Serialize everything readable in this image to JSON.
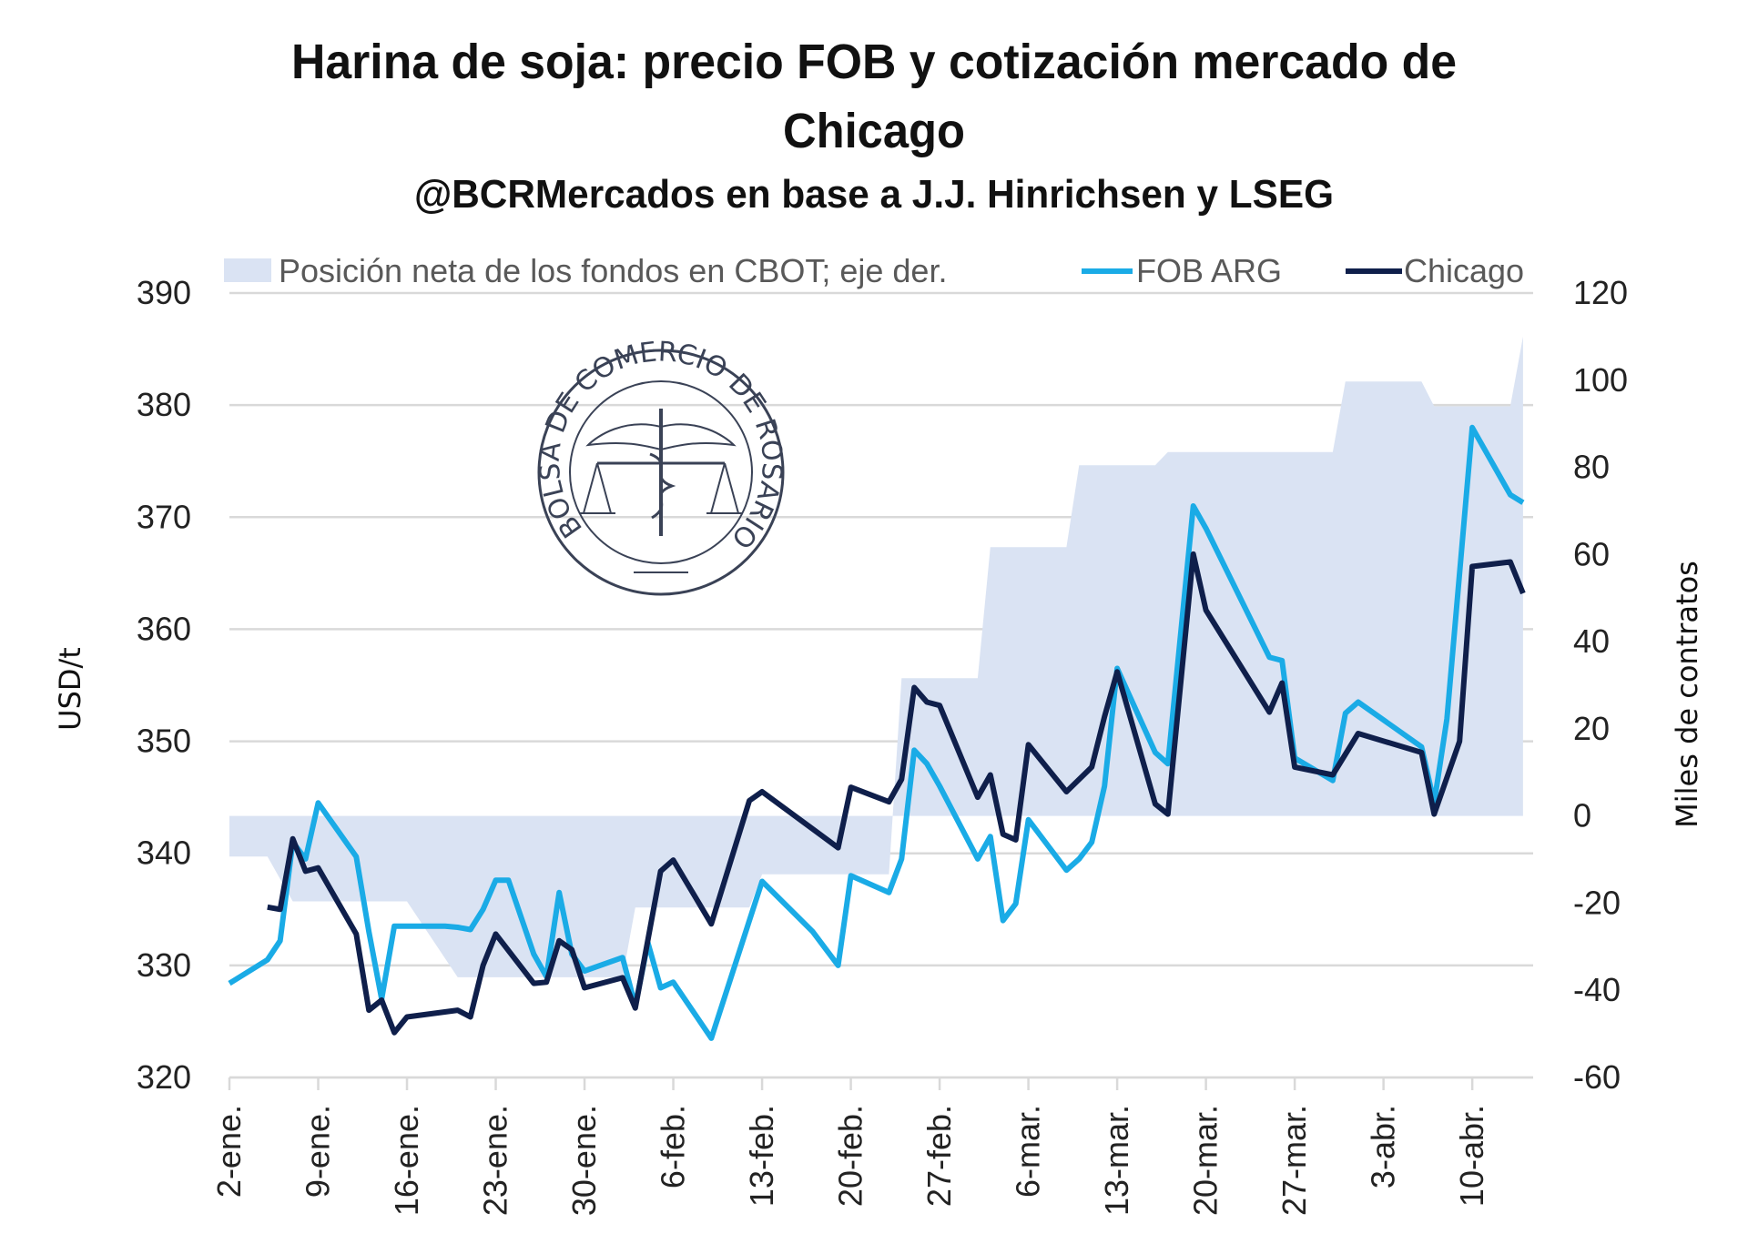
{
  "chart_data": {
    "type": "line",
    "title": "Harina de soja: precio FOB y cotización mercado de Chicago",
    "title_lines": [
      "Harina de soja: precio FOB y cotización mercado de",
      "Chicago"
    ],
    "subtitle": "@BCRMercados en base a J.J. Hinrichsen y LSEG",
    "ylabel": "USD/t",
    "y2label": "Miles de contratos",
    "ylim": [
      320,
      390
    ],
    "y2lim": [
      -60,
      120
    ],
    "yticks": [
      "390",
      "380",
      "370",
      "360",
      "350",
      "340",
      "330",
      "320"
    ],
    "y2ticks": [
      "120",
      "100",
      "80",
      "60",
      "40",
      "20",
      "0",
      "-20",
      "-40",
      "-60"
    ],
    "xticks": [
      "2-ene.",
      "9-ene.",
      "16-ene.",
      "23-ene.",
      "30-ene.",
      "6-feb.",
      "13-feb.",
      "20-feb.",
      "27-feb.",
      "6-mar.",
      "13-mar.",
      "20-mar.",
      "27-mar.",
      "3-abr.",
      "10-abr."
    ],
    "x_range": [
      "01-02",
      "04-14"
    ],
    "x_format": "MM-DD",
    "grid": true,
    "legend_placement": "top",
    "series": [
      {
        "name": "Posición neta de los fondos en CBOT; eje der.",
        "type": "area",
        "axis": "right",
        "color": "#DAE3F3",
        "points": [
          [
            "01-02",
            -9.3
          ],
          [
            "01-05",
            -9.3
          ],
          [
            "01-07",
            -19.6
          ],
          [
            "01-16",
            -19.6
          ],
          [
            "01-20",
            -37
          ],
          [
            "02-02",
            -37
          ],
          [
            "02-03",
            -21
          ],
          [
            "02-12",
            -21
          ],
          [
            "02-13",
            -13.4
          ],
          [
            "02-23",
            -13.4
          ],
          [
            "02-24",
            31.6
          ],
          [
            "03-02",
            31.6
          ],
          [
            "03-03",
            61.7
          ],
          [
            "03-09",
            61.7
          ],
          [
            "03-10",
            80.5
          ],
          [
            "03-16",
            80.5
          ],
          [
            "03-17",
            83.5
          ],
          [
            "03-30",
            83.5
          ],
          [
            "03-31",
            99.7
          ],
          [
            "04-06",
            99.7
          ],
          [
            "04-07",
            94
          ],
          [
            "04-13",
            94
          ],
          [
            "04-14",
            110
          ]
        ]
      },
      {
        "name": "FOB ARG",
        "type": "line",
        "axis": "left",
        "color": "#1AABE6",
        "points": [
          [
            "01-02",
            328.4
          ],
          [
            "01-05",
            330.5
          ],
          [
            "01-06",
            332.2
          ],
          [
            "01-07",
            341
          ],
          [
            "01-08",
            339.5
          ],
          [
            "01-09",
            344.5
          ],
          [
            "01-12",
            339.7
          ],
          [
            "01-13",
            333
          ],
          [
            "01-14",
            327
          ],
          [
            "01-15",
            333.5
          ],
          [
            "01-19",
            333.5
          ],
          [
            "01-20",
            333.4
          ],
          [
            "01-21",
            333.2
          ],
          [
            "01-22",
            335
          ],
          [
            "01-23",
            337.6
          ],
          [
            "01-24",
            337.6
          ],
          [
            "01-26",
            331
          ],
          [
            "01-27",
            329
          ],
          [
            "01-28",
            336.5
          ],
          [
            "01-29",
            331
          ],
          [
            "01-30",
            329.5
          ],
          [
            "02-02",
            330.7
          ],
          [
            "02-03",
            326.4
          ],
          [
            "02-04",
            332
          ],
          [
            "02-05",
            328
          ],
          [
            "02-06",
            328.5
          ],
          [
            "02-09",
            323.5
          ],
          [
            "02-12",
            334
          ],
          [
            "02-13",
            337.5
          ],
          [
            "02-17",
            333
          ],
          [
            "02-19",
            330
          ],
          [
            "02-20",
            338
          ],
          [
            "02-23",
            336.5
          ],
          [
            "02-24",
            339.5
          ],
          [
            "02-25",
            349.2
          ],
          [
            "02-26",
            348
          ],
          [
            "02-27",
            346
          ],
          [
            "03-02",
            339.5
          ],
          [
            "03-03",
            341.5
          ],
          [
            "03-04",
            334
          ],
          [
            "03-05",
            335.5
          ],
          [
            "03-06",
            343
          ],
          [
            "03-09",
            338.5
          ],
          [
            "03-10",
            339.5
          ],
          [
            "03-11",
            341
          ],
          [
            "03-12",
            346
          ],
          [
            "03-13",
            356.5
          ],
          [
            "03-16",
            349
          ],
          [
            "03-17",
            348
          ],
          [
            "03-19",
            371
          ],
          [
            "03-20",
            369
          ],
          [
            "03-25",
            357.5
          ],
          [
            "03-26",
            357.2
          ],
          [
            "03-27",
            348.5
          ],
          [
            "03-30",
            346.5
          ],
          [
            "03-31",
            352.5
          ],
          [
            "04-01",
            353.5
          ],
          [
            "04-06",
            349.5
          ],
          [
            "04-07",
            344.5
          ],
          [
            "04-08",
            352
          ],
          [
            "04-10",
            378
          ],
          [
            "04-13",
            372
          ],
          [
            "04-14",
            371.3
          ]
        ]
      },
      {
        "name": "Chicago",
        "type": "line",
        "axis": "left",
        "color": "#0F1F4B",
        "points": [
          [
            "01-05",
            335.2
          ],
          [
            "01-06",
            335
          ],
          [
            "01-07",
            341.3
          ],
          [
            "01-08",
            338.4
          ],
          [
            "01-09",
            338.7
          ],
          [
            "01-12",
            332.8
          ],
          [
            "01-13",
            326
          ],
          [
            "01-14",
            326.9
          ],
          [
            "01-15",
            324
          ],
          [
            "01-16",
            325.4
          ],
          [
            "01-20",
            326
          ],
          [
            "01-21",
            325.4
          ],
          [
            "01-22",
            330
          ],
          [
            "01-23",
            332.8
          ],
          [
            "01-26",
            328.4
          ],
          [
            "01-27",
            328.5
          ],
          [
            "01-28",
            332.2
          ],
          [
            "01-29",
            331.4
          ],
          [
            "01-30",
            328
          ],
          [
            "02-02",
            328.9
          ],
          [
            "02-03",
            326.2
          ],
          [
            "02-05",
            338.4
          ],
          [
            "02-06",
            339.4
          ],
          [
            "02-09",
            333.7
          ],
          [
            "02-12",
            344.7
          ],
          [
            "02-13",
            345.5
          ],
          [
            "02-19",
            340.5
          ],
          [
            "02-20",
            345.9
          ],
          [
            "02-23",
            344.6
          ],
          [
            "02-24",
            346.6
          ],
          [
            "02-25",
            354.8
          ],
          [
            "02-26",
            353.5
          ],
          [
            "02-27",
            353.2
          ],
          [
            "03-02",
            345
          ],
          [
            "03-03",
            347
          ],
          [
            "03-04",
            341.7
          ],
          [
            "03-05",
            341.2
          ],
          [
            "03-06",
            349.7
          ],
          [
            "03-09",
            345.5
          ],
          [
            "03-11",
            347.7
          ],
          [
            "03-12",
            352.2
          ],
          [
            "03-13",
            356.2
          ],
          [
            "03-16",
            344.4
          ],
          [
            "03-17",
            343.5
          ],
          [
            "03-19",
            366.7
          ],
          [
            "03-20",
            361.7
          ],
          [
            "03-25",
            352.6
          ],
          [
            "03-26",
            355.2
          ],
          [
            "03-27",
            347.7
          ],
          [
            "03-30",
            347
          ],
          [
            "04-01",
            350.7
          ],
          [
            "04-06",
            349
          ],
          [
            "04-07",
            343.5
          ],
          [
            "04-09",
            350
          ],
          [
            "04-10",
            365.6
          ],
          [
            "04-13",
            366
          ],
          [
            "04-14",
            363.2
          ]
        ]
      }
    ]
  },
  "logo": {
    "text": "BOLSA DE COMERCIO DE ROSARIO",
    "color": "#3A4256"
  }
}
